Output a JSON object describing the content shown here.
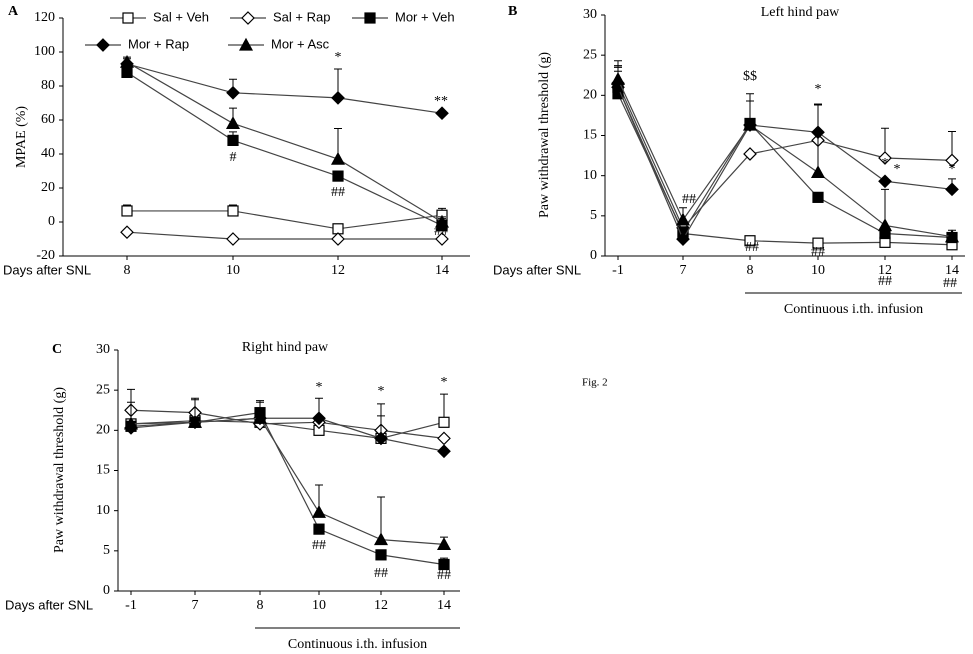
{
  "figure_label": "Fig. 2",
  "chart_data": [
    {
      "type": "line",
      "panel": "A",
      "ylabel": "MPAE (%)",
      "xlabel": "Days after SNL",
      "categories": [
        "8",
        "10",
        "12",
        "14"
      ],
      "ylim": [
        -20,
        120
      ],
      "yticks": [
        -20,
        0,
        20,
        40,
        60,
        80,
        100,
        120
      ],
      "series": [
        {
          "name": "Sal + Veh",
          "color": "#000000",
          "marker": "open-square",
          "values": [
            6.5,
            6.5,
            -4,
            4
          ],
          "errors": [
            3.5,
            3.5,
            null,
            4
          ]
        },
        {
          "name": "Sal + Rap",
          "color": "#000000",
          "marker": "open-diamond",
          "values": [
            -6,
            -10,
            -10,
            -10
          ],
          "errors": [
            null,
            null,
            null,
            null
          ]
        },
        {
          "name": "Mor + Veh",
          "color": "#000000",
          "marker": "filled-square",
          "values": [
            88,
            48,
            27,
            -2
          ],
          "errors": [
            3,
            5,
            null,
            4
          ]
        },
        {
          "name": "Mor + Rap",
          "color": "#000000",
          "marker": "filled-diamond",
          "values": [
            93,
            76,
            73,
            64
          ],
          "errors": [
            3,
            8,
            17,
            null
          ]
        },
        {
          "name": "Mor + Asc",
          "color": "#000000",
          "marker": "filled-triangle",
          "values": [
            94,
            58,
            37,
            0
          ],
          "errors": [
            3,
            9,
            18,
            3
          ]
        }
      ],
      "annotations": [
        {
          "text": "*"
        },
        {
          "text": "**"
        },
        {
          "text": "#"
        },
        {
          "text": "##"
        },
        {
          "text": "##"
        }
      ]
    },
    {
      "type": "line",
      "panel": "B",
      "title": "Left hind paw",
      "ylabel": "Paw withdrawal threshold (g)",
      "xlabel": "Days after SNL",
      "bracket_label": "Continuous i.th. infusion",
      "categories": [
        "-1",
        "7",
        "8",
        "10",
        "12",
        "14"
      ],
      "ylim": [
        0,
        30
      ],
      "yticks": [
        0,
        5,
        10,
        15,
        20,
        25,
        30
      ],
      "series": [
        {
          "color": "#000000",
          "marker": "open-square",
          "values": [
            21,
            2.8,
            1.9,
            1.6,
            1.7,
            1.4
          ],
          "errors": [
            2.5,
            null,
            null,
            null,
            null,
            null
          ]
        },
        {
          "color": "#000000",
          "marker": "open-diamond",
          "values": [
            21.5,
            3.5,
            12.7,
            14.4,
            12.2,
            11.9
          ],
          "errors": [
            2,
            null,
            null,
            4.5,
            3.7,
            3.6
          ]
        },
        {
          "color": "#000000",
          "marker": "filled-square",
          "values": [
            20.2,
            3,
            16.5,
            7.3,
            2.8,
            2.3
          ],
          "errors": [
            3.5,
            null,
            3.7,
            null,
            null,
            null
          ]
        },
        {
          "color": "#000000",
          "marker": "filled-diamond",
          "values": [
            21,
            2.1,
            16.3,
            15.4,
            9.3,
            8.3
          ],
          "errors": [
            2,
            null,
            null,
            3.4,
            null,
            1.3
          ]
        },
        {
          "color": "#000000",
          "marker": "filled-triangle",
          "values": [
            22,
            4.5,
            16.3,
            10.4,
            3.8,
            2.4
          ],
          "errors": [
            2.3,
            1.5,
            3,
            8.5,
            4.5,
            0.8
          ]
        }
      ],
      "annotations": [
        {
          "text": "##"
        },
        {
          "text": "$$"
        },
        {
          "text": "##"
        },
        {
          "text": "*"
        },
        {
          "text": "##"
        },
        {
          "text": "*"
        },
        {
          "text": "*"
        },
        {
          "text": "##"
        },
        {
          "text": "*"
        },
        {
          "text": "##"
        }
      ]
    },
    {
      "type": "line",
      "panel": "C",
      "title": "Right hind paw",
      "ylabel": "Paw withdrawal threshold (g)",
      "xlabel": "Days after SNL",
      "bracket_label": "Continuous i.th. infusion",
      "categories": [
        "-1",
        "7",
        "8",
        "10",
        "12",
        "14"
      ],
      "ylim": [
        0,
        30
      ],
      "yticks": [
        0,
        5,
        10,
        15,
        20,
        25,
        30
      ],
      "series": [
        {
          "color": "#000000",
          "marker": "open-square",
          "values": [
            20.8,
            21.2,
            21,
            20,
            19,
            21
          ],
          "errors": [
            null,
            null,
            null,
            null,
            null,
            3.5
          ]
        },
        {
          "color": "#000000",
          "marker": "open-diamond",
          "values": [
            22.5,
            22.2,
            20.8,
            21,
            20,
            19
          ],
          "errors": [
            null,
            1.8,
            null,
            null,
            3.3,
            null
          ]
        },
        {
          "color": "#000000",
          "marker": "filled-square",
          "values": [
            20.5,
            21,
            22.2,
            7.7,
            4.5,
            3.3
          ],
          "errors": [
            3,
            null,
            1.5,
            null,
            null,
            0.8
          ]
        },
        {
          "color": "#000000",
          "marker": "filled-diamond",
          "values": [
            20.3,
            21,
            21.5,
            21.5,
            19,
            17.4
          ],
          "errors": [
            4.8,
            2.8,
            2,
            2.5,
            2.8,
            null
          ]
        },
        {
          "color": "#000000",
          "marker": "filled-triangle",
          "values": [
            20.8,
            21,
            21.5,
            9.8,
            6.4,
            5.8
          ],
          "errors": [
            null,
            null,
            null,
            3.4,
            5.3,
            0.9
          ]
        }
      ],
      "annotations": [
        {
          "text": "*"
        },
        {
          "text": "*"
        },
        {
          "text": "*"
        },
        {
          "text": "##"
        },
        {
          "text": "##"
        },
        {
          "text": "##"
        }
      ]
    }
  ]
}
